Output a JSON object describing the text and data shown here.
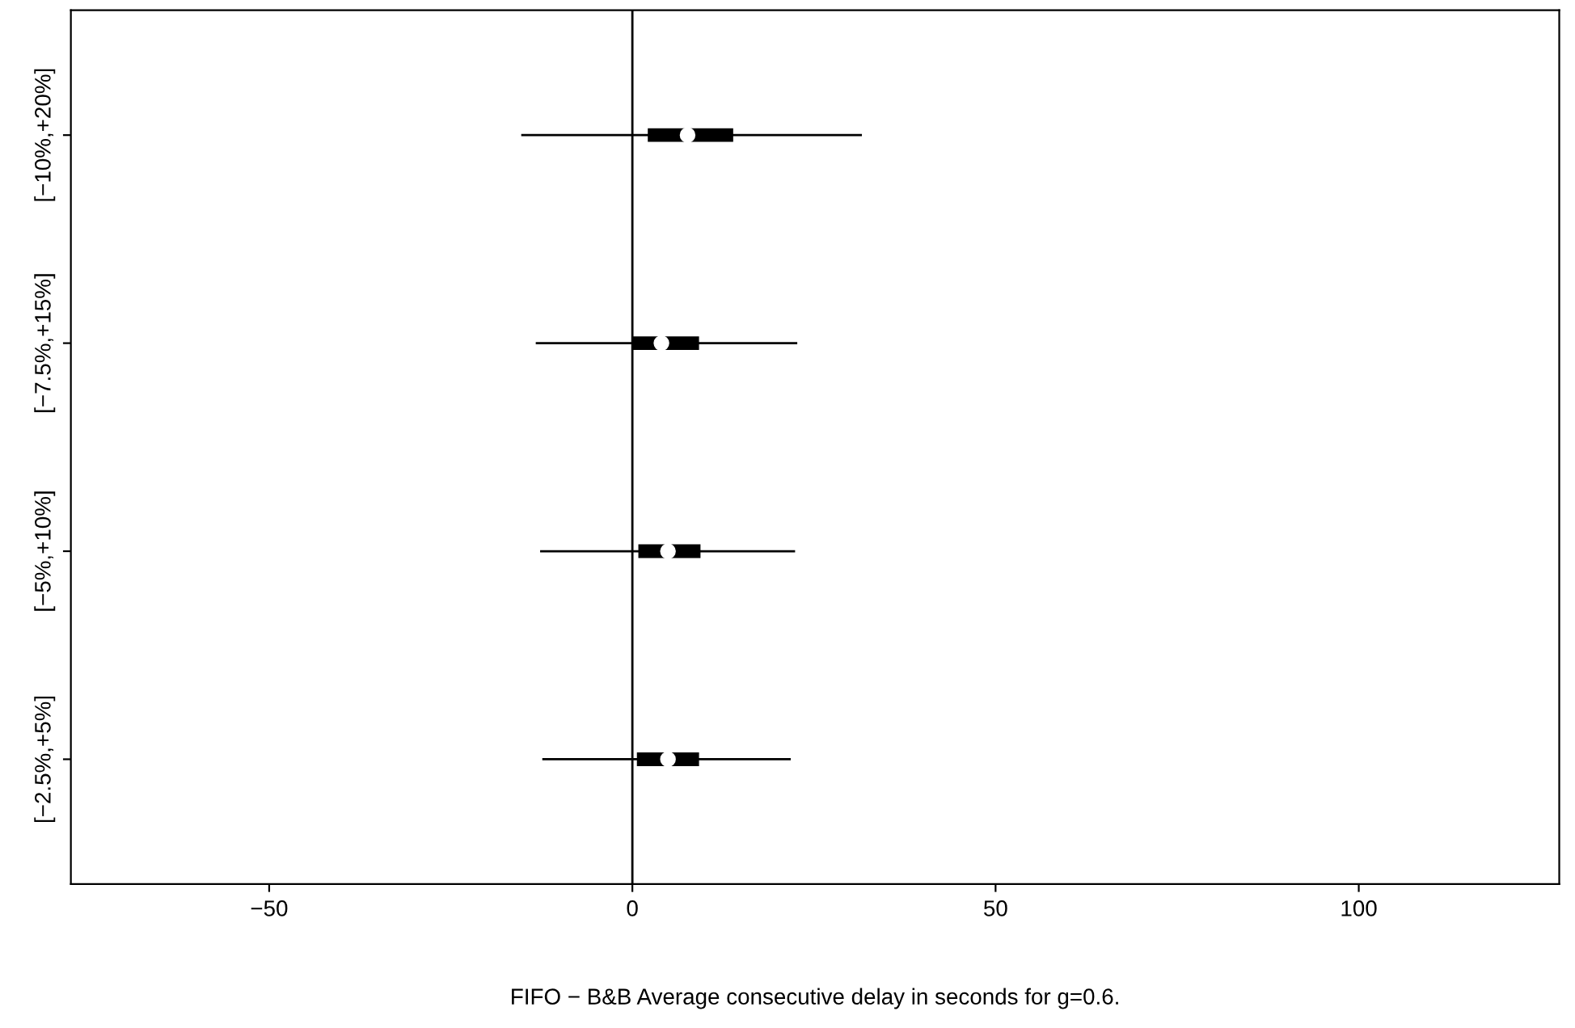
{
  "chart_data": {
    "type": "box",
    "orientation": "horizontal",
    "xlabel": "FIFO − B&B Average consecutive delay in seconds for g=0.6.",
    "categories": [
      "[−10%,+20%]",
      "[−7.5%,+15%]",
      "[−5%,+10%]",
      "[−2.5%,+5%]"
    ],
    "boxes": [
      {
        "low": -15.3,
        "q1": 2.2,
        "median": 7.6,
        "q3": 13.8,
        "high": 31.6
      },
      {
        "low": -13.3,
        "q1": 0,
        "median": 4,
        "q3": 9.1,
        "high": 22.7
      },
      {
        "low": -12.7,
        "q1": 0.9,
        "median": 4.9,
        "q3": 9.3,
        "high": 22.4
      },
      {
        "low": -12.4,
        "q1": 0.7,
        "median": 4.9,
        "q3": 9.1,
        "high": 21.8
      }
    ],
    "color": "#000000",
    "xlim": [
      -77.3,
      127.6
    ],
    "xticks": [
      {
        "value": -50,
        "label": "−50"
      },
      0,
      50,
      100
    ],
    "ref_lines": [
      {
        "axis": "x",
        "value": 0,
        "color": "#000000"
      }
    ],
    "grid": false,
    "legend": false
  }
}
